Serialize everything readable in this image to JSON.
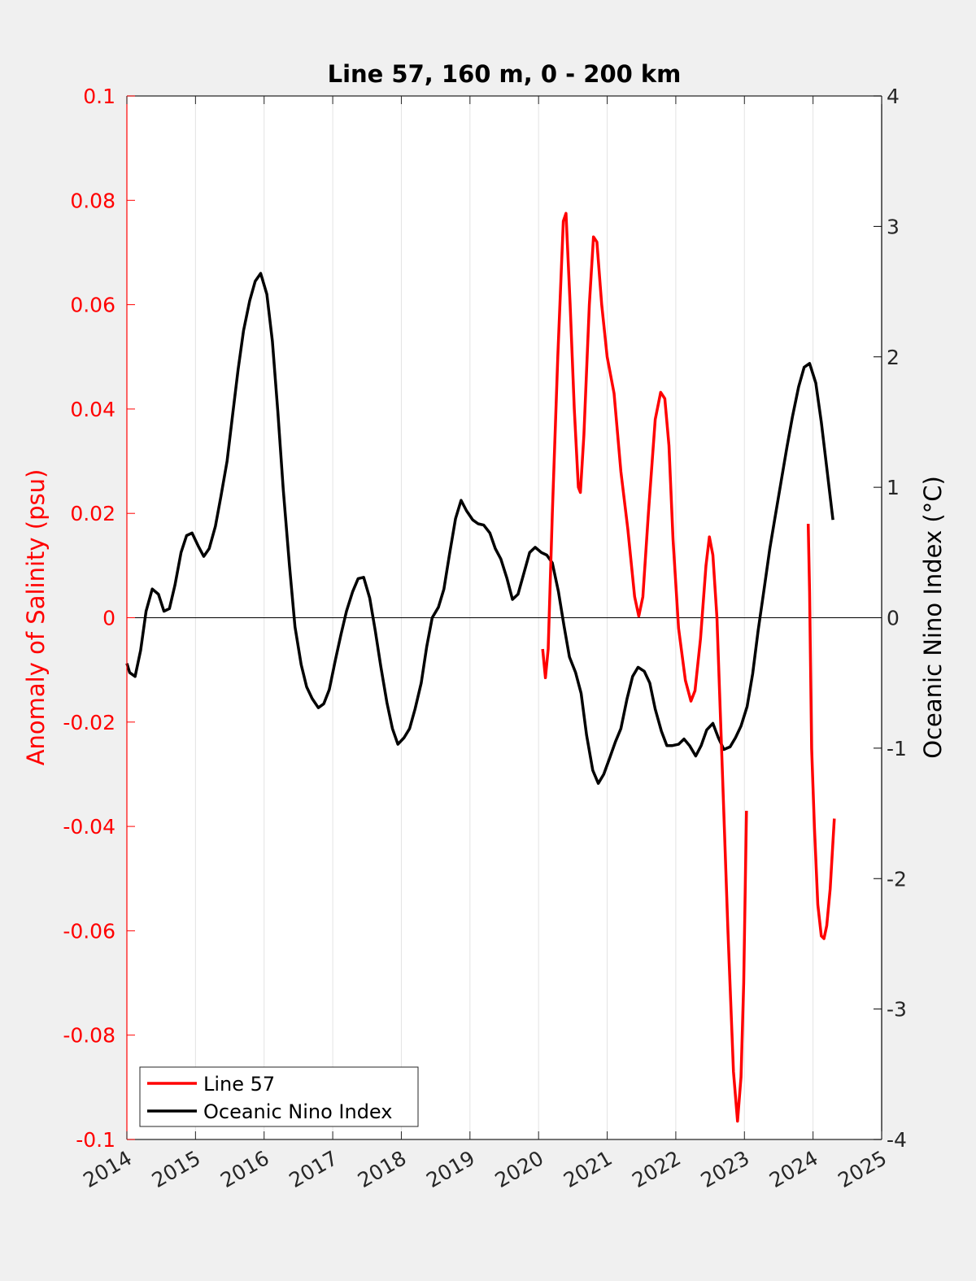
{
  "chart_data": {
    "type": "line",
    "title": "Line 57, 160 m, 0 - 200 km",
    "xlabel": "",
    "ylabel_left": "Anomaly of Salinity (psu)",
    "ylabel_right": "Oceanic Nino Index (°C)",
    "xlim": [
      2014,
      2025
    ],
    "ylim_left": [
      -0.1,
      0.1
    ],
    "ylim_right": [
      -4,
      4
    ],
    "x_ticks": [
      "2014",
      "2015",
      "2016",
      "2017",
      "2018",
      "2019",
      "2020",
      "2021",
      "2022",
      "2023",
      "2024",
      "2025"
    ],
    "y_ticks_left": [
      "-0.1",
      "-0.08",
      "-0.06",
      "-0.04",
      "-0.02",
      "0",
      "0.02",
      "0.04",
      "0.06",
      "0.08",
      "0.1"
    ],
    "y_ticks_right": [
      "-4",
      "-3",
      "-2",
      "-1",
      "0",
      "1",
      "2",
      "3",
      "4"
    ],
    "grid": "vertical",
    "legend_position": "bottom-left",
    "colors": {
      "left_axis": "#ff0000",
      "right_axis": "#000000",
      "zero_line": "#000000"
    },
    "series": [
      {
        "name": "Line 57",
        "axis": "left",
        "color": "#ff0000",
        "segments": [
          [
            [
              2020.06,
              -0.006
            ],
            [
              2020.1,
              -0.0115
            ],
            [
              2020.14,
              -0.006
            ],
            [
              2020.2,
              0.02
            ],
            [
              2020.28,
              0.05
            ],
            [
              2020.36,
              0.076
            ],
            [
              2020.4,
              0.0775
            ],
            [
              2020.46,
              0.06
            ],
            [
              2020.52,
              0.04
            ],
            [
              2020.58,
              0.025
            ],
            [
              2020.61,
              0.024
            ],
            [
              2020.66,
              0.035
            ],
            [
              2020.74,
              0.06
            ],
            [
              2020.8,
              0.073
            ],
            [
              2020.85,
              0.072
            ],
            [
              2020.92,
              0.06
            ],
            [
              2021.0,
              0.05
            ],
            [
              2021.1,
              0.043
            ],
            [
              2021.2,
              0.028
            ],
            [
              2021.3,
              0.017
            ],
            [
              2021.4,
              0.004
            ],
            [
              2021.46,
              0.0003
            ],
            [
              2021.52,
              0.004
            ],
            [
              2021.6,
              0.02
            ],
            [
              2021.7,
              0.038
            ],
            [
              2021.78,
              0.0432
            ],
            [
              2021.84,
              0.042
            ],
            [
              2021.9,
              0.033
            ],
            [
              2021.96,
              0.015
            ],
            [
              2022.04,
              -0.002
            ],
            [
              2022.14,
              -0.012
            ],
            [
              2022.22,
              -0.016
            ],
            [
              2022.28,
              -0.014
            ],
            [
              2022.36,
              -0.004
            ],
            [
              2022.44,
              0.01
            ],
            [
              2022.49,
              0.0155
            ],
            [
              2022.54,
              0.012
            ],
            [
              2022.6,
              0.0
            ],
            [
              2022.68,
              -0.03
            ],
            [
              2022.76,
              -0.06
            ],
            [
              2022.84,
              -0.087
            ],
            [
              2022.9,
              -0.0965
            ],
            [
              2022.95,
              -0.088
            ],
            [
              2022.99,
              -0.07
            ],
            [
              2023.03,
              -0.037
            ]
          ],
          [
            [
              2023.93,
              0.018
            ],
            [
              2023.95,
              0.005
            ],
            [
              2023.98,
              -0.025
            ],
            [
              2024.02,
              -0.04
            ],
            [
              2024.07,
              -0.055
            ],
            [
              2024.12,
              -0.061
            ],
            [
              2024.16,
              -0.0615
            ],
            [
              2024.2,
              -0.059
            ],
            [
              2024.25,
              -0.052
            ],
            [
              2024.31,
              -0.0385
            ]
          ]
        ]
      },
      {
        "name": "Oceanic Nino Index",
        "axis": "right",
        "color": "#000000",
        "points": [
          [
            2014.0,
            -0.35
          ],
          [
            2014.04,
            -0.42
          ],
          [
            2014.12,
            -0.45
          ],
          [
            2014.2,
            -0.25
          ],
          [
            2014.28,
            0.05
          ],
          [
            2014.37,
            0.22
          ],
          [
            2014.46,
            0.18
          ],
          [
            2014.54,
            0.05
          ],
          [
            2014.62,
            0.07
          ],
          [
            2014.7,
            0.25
          ],
          [
            2014.79,
            0.5
          ],
          [
            2014.87,
            0.63
          ],
          [
            2014.95,
            0.65
          ],
          [
            2015.04,
            0.55
          ],
          [
            2015.12,
            0.47
          ],
          [
            2015.2,
            0.53
          ],
          [
            2015.29,
            0.7
          ],
          [
            2015.37,
            0.93
          ],
          [
            2015.46,
            1.2
          ],
          [
            2015.54,
            1.55
          ],
          [
            2015.62,
            1.9
          ],
          [
            2015.7,
            2.2
          ],
          [
            2015.79,
            2.43
          ],
          [
            2015.87,
            2.58
          ],
          [
            2015.95,
            2.64
          ],
          [
            2016.04,
            2.48
          ],
          [
            2016.12,
            2.12
          ],
          [
            2016.2,
            1.58
          ],
          [
            2016.28,
            0.98
          ],
          [
            2016.37,
            0.4
          ],
          [
            2016.45,
            -0.07
          ],
          [
            2016.54,
            -0.36
          ],
          [
            2016.62,
            -0.53
          ],
          [
            2016.7,
            -0.62
          ],
          [
            2016.79,
            -0.69
          ],
          [
            2016.87,
            -0.66
          ],
          [
            2016.95,
            -0.55
          ],
          [
            2017.04,
            -0.32
          ],
          [
            2017.12,
            -0.13
          ],
          [
            2017.2,
            0.05
          ],
          [
            2017.29,
            0.2
          ],
          [
            2017.37,
            0.3
          ],
          [
            2017.45,
            0.31
          ],
          [
            2017.54,
            0.15
          ],
          [
            2017.62,
            -0.1
          ],
          [
            2017.7,
            -0.37
          ],
          [
            2017.79,
            -0.65
          ],
          [
            2017.87,
            -0.85
          ],
          [
            2017.95,
            -0.97
          ],
          [
            2018.04,
            -0.92
          ],
          [
            2018.12,
            -0.85
          ],
          [
            2018.2,
            -0.7
          ],
          [
            2018.29,
            -0.5
          ],
          [
            2018.37,
            -0.22
          ],
          [
            2018.45,
            0.0
          ],
          [
            2018.54,
            0.08
          ],
          [
            2018.62,
            0.22
          ],
          [
            2018.7,
            0.48
          ],
          [
            2018.79,
            0.76
          ],
          [
            2018.87,
            0.9
          ],
          [
            2018.95,
            0.82
          ],
          [
            2019.04,
            0.75
          ],
          [
            2019.12,
            0.72
          ],
          [
            2019.2,
            0.71
          ],
          [
            2019.29,
            0.65
          ],
          [
            2019.37,
            0.53
          ],
          [
            2019.45,
            0.45
          ],
          [
            2019.54,
            0.3
          ],
          [
            2019.62,
            0.14
          ],
          [
            2019.7,
            0.18
          ],
          [
            2019.79,
            0.35
          ],
          [
            2019.87,
            0.5
          ],
          [
            2019.95,
            0.54
          ],
          [
            2020.04,
            0.5
          ],
          [
            2020.12,
            0.48
          ],
          [
            2020.2,
            0.42
          ],
          [
            2020.29,
            0.2
          ],
          [
            2020.37,
            -0.06
          ],
          [
            2020.45,
            -0.3
          ],
          [
            2020.54,
            -0.42
          ],
          [
            2020.62,
            -0.58
          ],
          [
            2020.7,
            -0.9
          ],
          [
            2020.79,
            -1.17
          ],
          [
            2020.87,
            -1.27
          ],
          [
            2020.95,
            -1.2
          ],
          [
            2021.04,
            -1.07
          ],
          [
            2021.12,
            -0.95
          ],
          [
            2021.2,
            -0.85
          ],
          [
            2021.29,
            -0.62
          ],
          [
            2021.37,
            -0.45
          ],
          [
            2021.45,
            -0.38
          ],
          [
            2021.54,
            -0.41
          ],
          [
            2021.62,
            -0.5
          ],
          [
            2021.7,
            -0.7
          ],
          [
            2021.79,
            -0.87
          ],
          [
            2021.87,
            -0.98
          ],
          [
            2021.95,
            -0.98
          ],
          [
            2022.04,
            -0.97
          ],
          [
            2022.12,
            -0.93
          ],
          [
            2022.2,
            -0.98
          ],
          [
            2022.29,
            -1.06
          ],
          [
            2022.37,
            -0.98
          ],
          [
            2022.45,
            -0.86
          ],
          [
            2022.54,
            -0.81
          ],
          [
            2022.62,
            -0.92
          ],
          [
            2022.7,
            -1.01
          ],
          [
            2022.79,
            -0.99
          ],
          [
            2022.87,
            -0.92
          ],
          [
            2022.95,
            -0.83
          ],
          [
            2023.04,
            -0.68
          ],
          [
            2023.12,
            -0.43
          ],
          [
            2023.2,
            -0.1
          ],
          [
            2023.29,
            0.23
          ],
          [
            2023.37,
            0.53
          ],
          [
            2023.45,
            0.78
          ],
          [
            2023.54,
            1.06
          ],
          [
            2023.62,
            1.31
          ],
          [
            2023.7,
            1.54
          ],
          [
            2023.79,
            1.77
          ],
          [
            2023.87,
            1.92
          ],
          [
            2023.95,
            1.95
          ],
          [
            2024.04,
            1.8
          ],
          [
            2024.12,
            1.5
          ],
          [
            2024.2,
            1.15
          ],
          [
            2024.29,
            0.75
          ]
        ]
      }
    ]
  }
}
